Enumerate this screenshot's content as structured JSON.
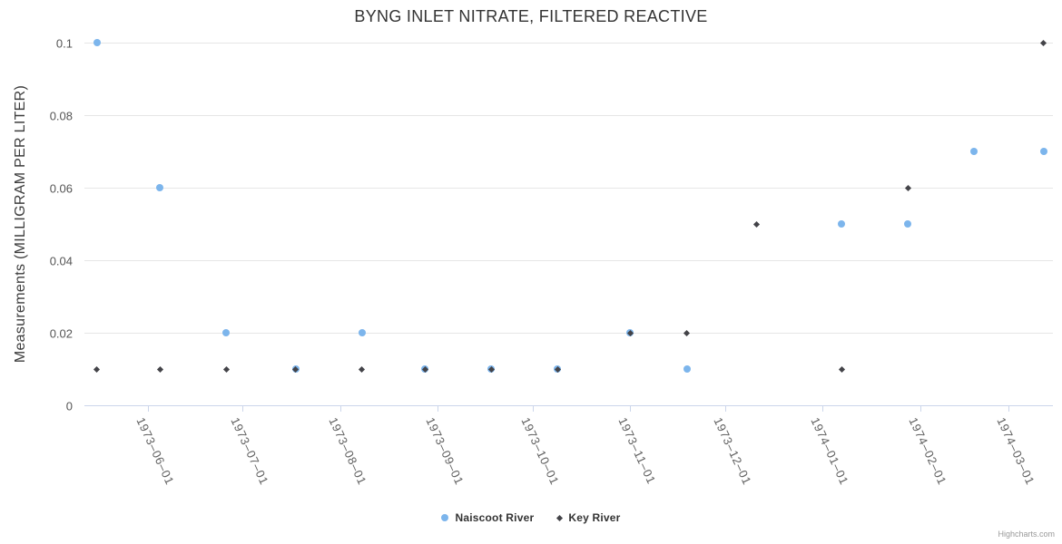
{
  "title": "BYNG INLET NITRATE, FILTERED REACTIVE",
  "credits_label": "Highcharts.com",
  "colors": {
    "naiscoot_blue": "#7cb5ec",
    "key_dark": "#434348",
    "gridline": "#e6e6e6",
    "axis_line": "#ccd6eb",
    "title_text": "#333333",
    "axis_label_text": "#606060",
    "legend_text": "#333333",
    "credits_text": "#999999"
  },
  "chart_data": {
    "type": "scatter",
    "title": "BYNG INLET NITRATE, FILTERED REACTIVE",
    "xlabel": "",
    "ylabel": "Measurements (MILLIGRAM PER LITER)",
    "ylim": [
      0,
      0.1
    ],
    "y_ticks": [
      {
        "value": 0,
        "label": "0"
      },
      {
        "value": 0.02,
        "label": "0.02"
      },
      {
        "value": 0.04,
        "label": "0.04"
      },
      {
        "value": 0.06,
        "label": "0.06"
      },
      {
        "value": 0.08,
        "label": "0.08"
      },
      {
        "value": 0.1,
        "label": "0.1"
      }
    ],
    "x_ticks": [
      "1973-06-01",
      "1973-07-01",
      "1973-08-01",
      "1973-09-01",
      "1973-10-01",
      "1973-11-01",
      "1973-12-01",
      "1974-01-01",
      "1974-02-01",
      "1974-03-01"
    ],
    "x_range": [
      "1973-05-12",
      "1974-03-15"
    ],
    "grid": "horizontal-only",
    "legend_position": "bottom-center",
    "series": [
      {
        "name": "Naiscoot River",
        "marker": "circle",
        "color": "#7cb5ec",
        "points": [
          [
            "1973-05-16",
            0.1
          ],
          [
            "1973-06-05",
            0.06
          ],
          [
            "1973-06-26",
            0.02
          ],
          [
            "1973-07-18",
            0.01
          ],
          [
            "1973-08-08",
            0.02
          ],
          [
            "1973-08-28",
            0.01
          ],
          [
            "1973-09-18",
            0.01
          ],
          [
            "1973-10-09",
            0.01
          ],
          [
            "1973-11-01",
            0.02
          ],
          [
            "1973-11-19",
            0.01
          ],
          [
            "1974-01-07",
            0.05
          ],
          [
            "1974-01-28",
            0.05
          ],
          [
            "1974-02-18",
            0.07
          ],
          [
            "1974-03-12",
            0.07
          ]
        ]
      },
      {
        "name": "Key River",
        "marker": "diamond",
        "color": "#434348",
        "points": [
          [
            "1973-05-16",
            0.01
          ],
          [
            "1973-06-05",
            0.01
          ],
          [
            "1973-06-26",
            0.01
          ],
          [
            "1973-07-18",
            0.01
          ],
          [
            "1973-08-08",
            0.01
          ],
          [
            "1973-08-28",
            0.01
          ],
          [
            "1973-09-18",
            0.01
          ],
          [
            "1973-10-09",
            0.01
          ],
          [
            "1973-11-01",
            0.02
          ],
          [
            "1973-11-19",
            0.02
          ],
          [
            "1973-12-11",
            0.05
          ],
          [
            "1974-01-07",
            0.01
          ],
          [
            "1974-01-28",
            0.06
          ],
          [
            "1974-03-12",
            0.1
          ]
        ]
      }
    ]
  }
}
